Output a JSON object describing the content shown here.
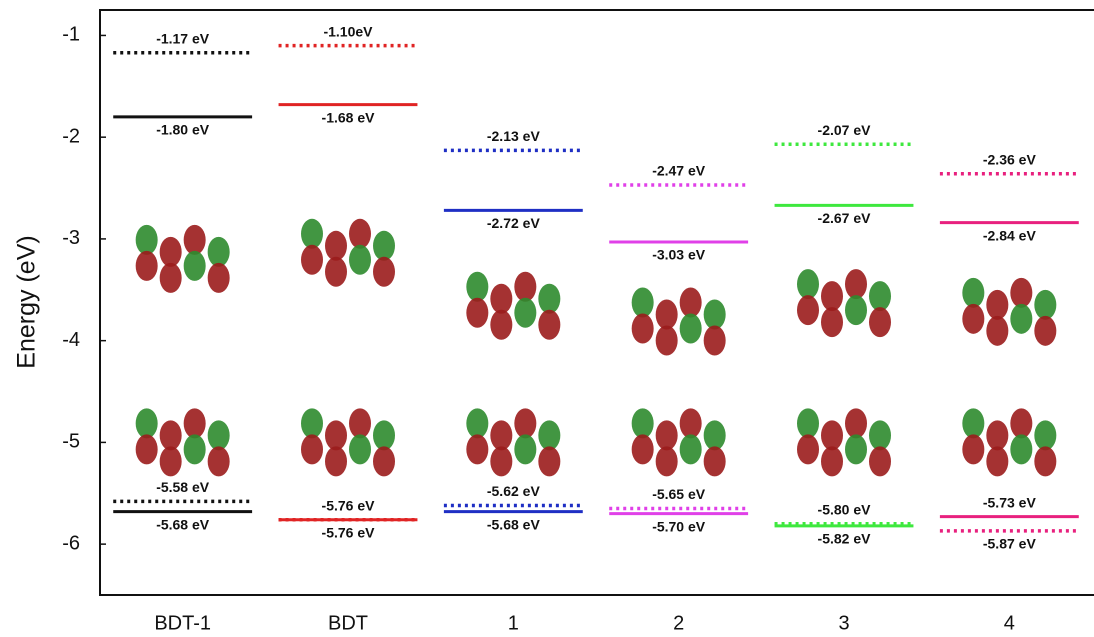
{
  "chart_data": {
    "type": "energy-level",
    "y_label": "Energy (eV)",
    "categories": [
      "BDT-1",
      "BDT",
      "1",
      "2",
      "3",
      "4"
    ],
    "colors": [
      "#111111",
      "#e02424",
      "#1f2fc4",
      "#e040e8",
      "#3ee83e",
      "#e8207e"
    ],
    "ylim": [
      -6.5,
      -0.75
    ],
    "yticks": [
      -1,
      -2,
      -3,
      -4,
      -5,
      -6
    ],
    "series": [
      {
        "style": "dotted",
        "values": [
          -1.17,
          -1.1,
          -2.13,
          -2.47,
          -2.07,
          -2.36
        ],
        "value_labels": [
          "-1.17 eV",
          "-1.10eV",
          "-2.13 eV",
          "-2.47 eV",
          "-2.07 eV",
          "-2.36 eV"
        ]
      },
      {
        "style": "solid",
        "values": [
          -1.8,
          -1.68,
          -2.72,
          -3.03,
          -2.67,
          -2.84
        ],
        "value_labels": [
          "-1.80 eV",
          "-1.68 eV",
          "-2.72 eV",
          "-3.03 eV",
          "-2.67 eV",
          "-2.84 eV"
        ]
      },
      {
        "style": "dotted",
        "values": [
          -5.58,
          -5.76,
          -5.62,
          -5.65,
          -5.8,
          -5.87
        ],
        "value_labels": [
          "-5.58 eV",
          "-5.76 eV",
          "-5.62 eV",
          "-5.65 eV",
          "-5.80 eV",
          "-5.87 eV"
        ]
      },
      {
        "style": "solid",
        "values": [
          -5.68,
          -5.76,
          -5.68,
          -5.7,
          -5.82,
          -5.73
        ],
        "value_labels": [
          "-5.68 eV",
          "-5.76 eV",
          "-5.68 eV",
          "-5.70 eV",
          "-5.82 eV",
          "-5.73 eV"
        ]
      }
    ]
  }
}
